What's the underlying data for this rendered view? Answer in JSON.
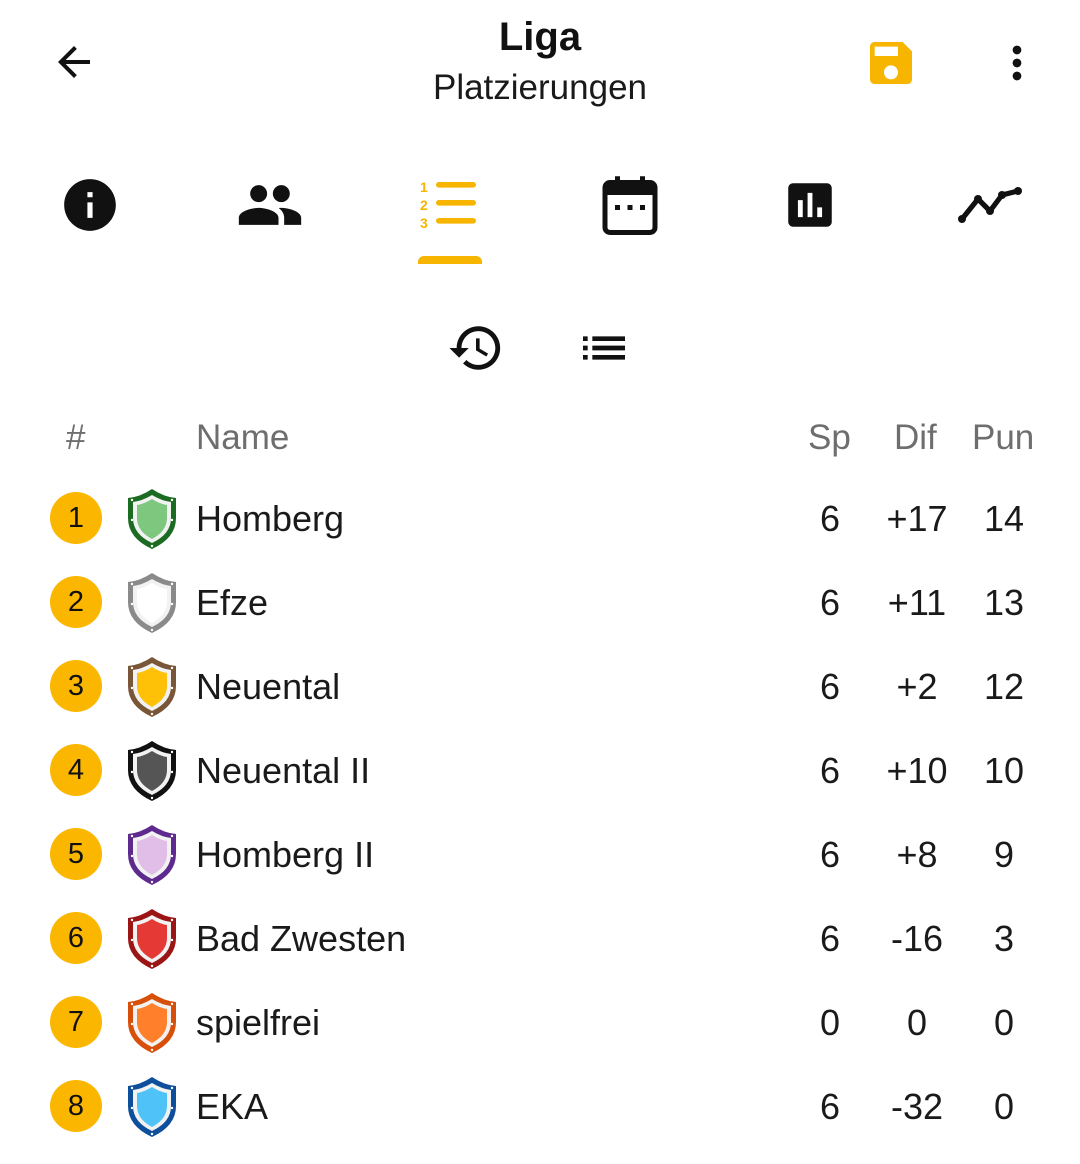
{
  "appbar": {
    "title": "Liga",
    "subtitle": "Platzierungen",
    "accent": "#f7b500"
  },
  "tabs": [
    {
      "icon": "info-icon"
    },
    {
      "icon": "people-icon"
    },
    {
      "icon": "ranking-list-icon",
      "selected": true
    },
    {
      "icon": "calendar-icon"
    },
    {
      "icon": "bar-chart-icon"
    },
    {
      "icon": "line-chart-icon"
    }
  ],
  "subtoolbar": [
    {
      "icon": "history-icon"
    },
    {
      "icon": "list-icon"
    }
  ],
  "table": {
    "headers": {
      "rank": "#",
      "name": "Name",
      "games": "Sp",
      "diff": "Dif",
      "points": "Pun"
    },
    "rows": [
      {
        "rank": "1",
        "name": "Homberg",
        "games": "6",
        "diff": "+17",
        "points": "14",
        "crest_fill": "#7dc77e",
        "crest_border": "#1c6b22"
      },
      {
        "rank": "2",
        "name": "Efze",
        "games": "6",
        "diff": "+11",
        "points": "13",
        "crest_fill": "#ffffff",
        "crest_border": "#8a8a8a"
      },
      {
        "rank": "3",
        "name": "Neuental",
        "games": "6",
        "diff": "+2",
        "points": "12",
        "crest_fill": "#ffc107",
        "crest_border": "#7a5638"
      },
      {
        "rank": "4",
        "name": "Neuental II",
        "games": "6",
        "diff": "+10",
        "points": "10",
        "crest_fill": "#555555",
        "crest_border": "#111111"
      },
      {
        "rank": "5",
        "name": "Homberg II",
        "games": "6",
        "diff": "+8",
        "points": "9",
        "crest_fill": "#e1bee7",
        "crest_border": "#5e2a8e"
      },
      {
        "rank": "6",
        "name": "Bad Zwesten",
        "games": "6",
        "diff": "-16",
        "points": "3",
        "crest_fill": "#e53935",
        "crest_border": "#9b1515"
      },
      {
        "rank": "7",
        "name": "spielfrei",
        "games": "0",
        "diff": "0",
        "points": "0",
        "crest_fill": "#ff7f2a",
        "crest_border": "#d84f0a"
      },
      {
        "rank": "8",
        "name": "EKA",
        "games": "6",
        "diff": "-32",
        "points": "0",
        "crest_fill": "#4fc3f7",
        "crest_border": "#0d4f9b"
      }
    ]
  }
}
